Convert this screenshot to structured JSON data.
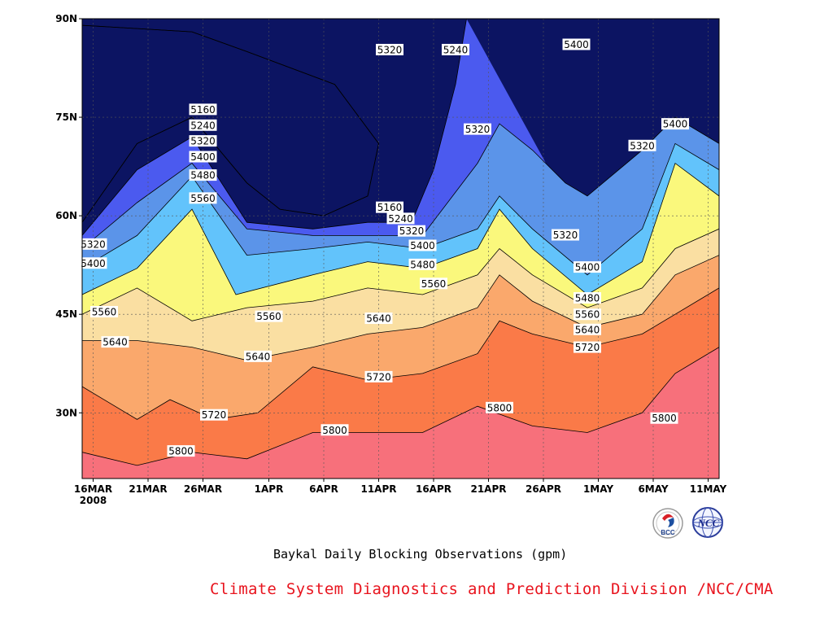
{
  "chart_data": {
    "type": "contour",
    "title": "Baykal Daily Blocking Observations (gpm)",
    "x_ticks": [
      "16MAR",
      "21MAR",
      "26MAR",
      "1APR",
      "6APR",
      "11APR",
      "16APR",
      "21APR",
      "26APR",
      "1MAY",
      "6MAY",
      "11MAY"
    ],
    "x_year_label": "2008",
    "y_ticks": [
      "30N",
      "45N",
      "60N",
      "75N",
      "90N"
    ],
    "y_tick_values": [
      30,
      45,
      60,
      75,
      90
    ],
    "ylim": [
      20,
      90
    ],
    "xlim": [
      "2008-03-15",
      "2008-05-12"
    ],
    "grid": true,
    "contour_levels": [
      5160,
      5240,
      5320,
      5400,
      5480,
      5560,
      5640,
      5720,
      5800
    ],
    "fill_colors": [
      "#0c1462",
      "#1e1ee0",
      "#4b5aef",
      "#5b94e9",
      "#62c3fb",
      "#faf87c",
      "#fadfa2",
      "#faa86c",
      "#fa7a48",
      "#f7707b"
    ],
    "isolines": [
      {
        "value": 5800,
        "points": [
          [
            "2008-03-15",
            24
          ],
          [
            "2008-03-20",
            22
          ],
          [
            "2008-03-25",
            24
          ],
          [
            "2008-03-30",
            23
          ],
          [
            "2008-04-05",
            27
          ],
          [
            "2008-04-10",
            27
          ],
          [
            "2008-04-15",
            27
          ],
          [
            "2008-04-20",
            31
          ],
          [
            "2008-04-25",
            28
          ],
          [
            "2008-04-30",
            27
          ],
          [
            "2008-05-05",
            30
          ],
          [
            "2008-05-08",
            36
          ],
          [
            "2008-05-12",
            40
          ]
        ]
      },
      {
        "value": 5720,
        "points": [
          [
            "2008-03-15",
            34
          ],
          [
            "2008-03-20",
            29
          ],
          [
            "2008-03-23",
            32
          ],
          [
            "2008-03-27",
            29
          ],
          [
            "2008-03-31",
            30
          ],
          [
            "2008-04-05",
            37
          ],
          [
            "2008-04-10",
            35
          ],
          [
            "2008-04-15",
            36
          ],
          [
            "2008-04-20",
            39
          ],
          [
            "2008-04-22",
            44
          ],
          [
            "2008-04-25",
            42
          ],
          [
            "2008-04-30",
            40
          ],
          [
            "2008-05-05",
            42
          ],
          [
            "2008-05-08",
            45
          ],
          [
            "2008-05-12",
            49
          ]
        ]
      },
      {
        "value": 5640,
        "points": [
          [
            "2008-03-15",
            41
          ],
          [
            "2008-03-20",
            41
          ],
          [
            "2008-03-25",
            40
          ],
          [
            "2008-03-30",
            38
          ],
          [
            "2008-04-05",
            40
          ],
          [
            "2008-04-10",
            42
          ],
          [
            "2008-04-15",
            43
          ],
          [
            "2008-04-20",
            46
          ],
          [
            "2008-04-22",
            51
          ],
          [
            "2008-04-25",
            47
          ],
          [
            "2008-04-30",
            43
          ],
          [
            "2008-05-05",
            45
          ],
          [
            "2008-05-08",
            51
          ],
          [
            "2008-05-12",
            54
          ]
        ]
      },
      {
        "value": 5560,
        "points": [
          [
            "2008-03-15",
            45
          ],
          [
            "2008-03-20",
            49
          ],
          [
            "2008-03-25",
            44
          ],
          [
            "2008-03-30",
            46
          ],
          [
            "2008-04-05",
            47
          ],
          [
            "2008-04-10",
            49
          ],
          [
            "2008-04-15",
            48
          ],
          [
            "2008-04-20",
            51
          ],
          [
            "2008-04-22",
            55
          ],
          [
            "2008-04-25",
            51
          ],
          [
            "2008-04-30",
            46
          ],
          [
            "2008-05-05",
            49
          ],
          [
            "2008-05-08",
            55
          ],
          [
            "2008-05-12",
            58
          ]
        ]
      },
      {
        "value": 5480,
        "points": [
          [
            "2008-03-15",
            48
          ],
          [
            "2008-03-20",
            52
          ],
          [
            "2008-03-25",
            61
          ],
          [
            "2008-03-29",
            48
          ],
          [
            "2008-04-05",
            51
          ],
          [
            "2008-04-10",
            53
          ],
          [
            "2008-04-15",
            52
          ],
          [
            "2008-04-20",
            55
          ],
          [
            "2008-04-22",
            61
          ],
          [
            "2008-04-25",
            55
          ],
          [
            "2008-04-30",
            48
          ],
          [
            "2008-05-05",
            53
          ],
          [
            "2008-05-08",
            68
          ],
          [
            "2008-05-12",
            63
          ]
        ]
      },
      {
        "value": 5400,
        "points": [
          [
            "2008-03-15",
            52
          ],
          [
            "2008-03-20",
            57
          ],
          [
            "2008-03-25",
            66
          ],
          [
            "2008-03-30",
            54
          ],
          [
            "2008-04-05",
            55
          ],
          [
            "2008-04-10",
            56
          ],
          [
            "2008-04-15",
            55
          ],
          [
            "2008-04-20",
            58
          ],
          [
            "2008-04-22",
            63
          ],
          [
            "2008-04-25",
            58
          ],
          [
            "2008-04-30",
            51
          ],
          [
            "2008-05-05",
            58
          ],
          [
            "2008-05-08",
            71
          ],
          [
            "2008-05-12",
            67
          ]
        ]
      },
      {
        "value": 5320,
        "points": [
          [
            "2008-03-15",
            55
          ],
          [
            "2008-03-20",
            62
          ],
          [
            "2008-03-25",
            68
          ],
          [
            "2008-03-30",
            58
          ],
          [
            "2008-04-05",
            57
          ],
          [
            "2008-04-10",
            57
          ],
          [
            "2008-04-15",
            57
          ],
          [
            "2008-04-20",
            68
          ],
          [
            "2008-04-22",
            74
          ],
          [
            "2008-04-25",
            70
          ],
          [
            "2008-04-28",
            65
          ],
          [
            "2008-04-30",
            63
          ],
          [
            "2008-05-05",
            70
          ],
          [
            "2008-05-08",
            75
          ],
          [
            "2008-05-12",
            71
          ]
        ]
      },
      {
        "value": 5240,
        "points": [
          [
            "2008-03-15",
            57
          ],
          [
            "2008-03-20",
            67
          ],
          [
            "2008-03-25",
            72
          ],
          [
            "2008-03-30",
            59
          ],
          [
            "2008-04-05",
            58
          ],
          [
            "2008-04-10",
            59
          ],
          [
            "2008-04-14",
            59
          ],
          [
            "2008-04-16",
            67
          ],
          [
            "2008-04-18",
            80
          ],
          [
            "2008-04-19",
            90
          ]
        ]
      },
      {
        "value": 5160,
        "points": [
          [
            "2008-03-15",
            59
          ],
          [
            "2008-03-20",
            71
          ],
          [
            "2008-03-25",
            75
          ],
          [
            "2008-03-30",
            65
          ],
          [
            "2008-04-02",
            61
          ],
          [
            "2008-04-06",
            60
          ],
          [
            "2008-04-10",
            63
          ],
          [
            "2008-04-11",
            71
          ],
          [
            "2008-04-07",
            80
          ],
          [
            "2008-03-30",
            85
          ],
          [
            "2008-03-25",
            88
          ],
          [
            "2008-03-15",
            89
          ]
        ]
      }
    ],
    "contour_labels": [
      {
        "text": "5160",
        "x": "2008-03-26",
        "y": 76.2
      },
      {
        "text": "5240",
        "x": "2008-03-26",
        "y": 73.8
      },
      {
        "text": "5320",
        "x": "2008-03-26",
        "y": 71.4
      },
      {
        "text": "5400",
        "x": "2008-03-26",
        "y": 69.0
      },
      {
        "text": "5480",
        "x": "2008-03-26",
        "y": 66.2
      },
      {
        "text": "5560",
        "x": "2008-03-26",
        "y": 62.7
      },
      {
        "text": "5320",
        "x": "2008-04-12",
        "y": 85.3
      },
      {
        "text": "5240",
        "x": "2008-04-18",
        "y": 85.3
      },
      {
        "text": "5400",
        "x": "2008-04-29",
        "y": 86.1
      },
      {
        "text": "5320",
        "x": "2008-04-20",
        "y": 73.2
      },
      {
        "text": "5400",
        "x": "2008-05-08",
        "y": 74.0
      },
      {
        "text": "5320",
        "x": "2008-05-05",
        "y": 70.7
      },
      {
        "text": "5160",
        "x": "2008-04-12",
        "y": 61.3
      },
      {
        "text": "5240",
        "x": "2008-04-13",
        "y": 59.6
      },
      {
        "text": "5320",
        "x": "2008-04-14",
        "y": 57.7
      },
      {
        "text": "5400",
        "x": "2008-04-15",
        "y": 55.5
      },
      {
        "text": "5480",
        "x": "2008-04-15",
        "y": 52.6
      },
      {
        "text": "5560",
        "x": "2008-04-16",
        "y": 49.7
      },
      {
        "text": "5320",
        "x": "2008-03-16",
        "y": 55.7
      },
      {
        "text": "5400",
        "x": "2008-03-16",
        "y": 52.8
      },
      {
        "text": "5560",
        "x": "2008-03-17",
        "y": 45.4
      },
      {
        "text": "5640",
        "x": "2008-03-18",
        "y": 40.8
      },
      {
        "text": "5560",
        "x": "2008-04-01",
        "y": 44.7
      },
      {
        "text": "5640",
        "x": "2008-04-11",
        "y": 44.4
      },
      {
        "text": "5640",
        "x": "2008-03-31",
        "y": 38.6
      },
      {
        "text": "5720",
        "x": "2008-04-11",
        "y": 35.5
      },
      {
        "text": "5720",
        "x": "2008-03-27",
        "y": 29.7
      },
      {
        "text": "5800",
        "x": "2008-04-07",
        "y": 27.4
      },
      {
        "text": "5800",
        "x": "2008-03-24",
        "y": 24.2
      },
      {
        "text": "5800",
        "x": "2008-04-22",
        "y": 30.8
      },
      {
        "text": "5800",
        "x": "2008-05-07",
        "y": 29.2
      },
      {
        "text": "5320",
        "x": "2008-04-28",
        "y": 57.1
      },
      {
        "text": "5400",
        "x": "2008-04-30",
        "y": 52.2
      },
      {
        "text": "5480",
        "x": "2008-04-30",
        "y": 47.5
      },
      {
        "text": "5560",
        "x": "2008-04-30",
        "y": 45.0
      },
      {
        "text": "5640",
        "x": "2008-04-30",
        "y": 42.7
      },
      {
        "text": "5720",
        "x": "2008-04-30",
        "y": 40.0
      }
    ]
  },
  "caption": {
    "division": "Climate System Diagnostics and Prediction Division /NCC/CMA"
  },
  "logos": {
    "left_text": "BCC",
    "right_text": "NCC"
  }
}
